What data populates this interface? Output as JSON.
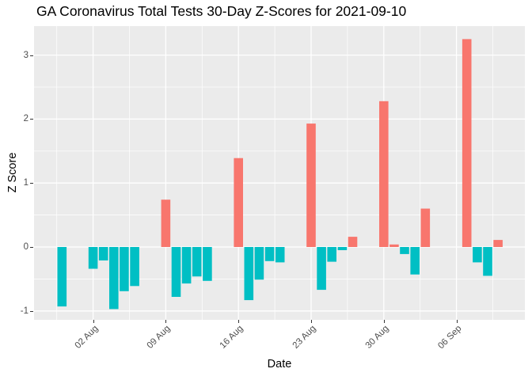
{
  "chart_data": {
    "type": "bar",
    "title": "GA Coronavirus Total Tests 30-Day Z-Scores for 2021-09-10",
    "xlabel": "Date",
    "ylabel": "Z Score",
    "legend": "none",
    "grid": true,
    "x_tick_labels": [
      "02 Aug",
      "09 Aug",
      "16 Aug",
      "23 Aug",
      "30 Aug",
      "06 Sep"
    ],
    "x_tick_dates": [
      "2021-08-02",
      "2021-08-09",
      "2021-08-16",
      "2021-08-23",
      "2021-08-30",
      "2021-09-06"
    ],
    "y_ticks": [
      -1,
      0,
      1,
      2,
      3
    ],
    "y_minor_ticks": [
      -0.5,
      0.5,
      1.5,
      2.5
    ],
    "ylim": [
      -1.17,
      3.46
    ],
    "bars": [
      {
        "date": "2021-07-30",
        "value": -0.93
      },
      {
        "date": "2021-08-02",
        "value": -0.34
      },
      {
        "date": "2021-08-03",
        "value": -0.21
      },
      {
        "date": "2021-08-04",
        "value": -0.97
      },
      {
        "date": "2021-08-05",
        "value": -0.69
      },
      {
        "date": "2021-08-06",
        "value": -0.61
      },
      {
        "date": "2021-08-09",
        "value": 0.74
      },
      {
        "date": "2021-08-10",
        "value": -0.78
      },
      {
        "date": "2021-08-11",
        "value": -0.57
      },
      {
        "date": "2021-08-12",
        "value": -0.46
      },
      {
        "date": "2021-08-13",
        "value": -0.53
      },
      {
        "date": "2021-08-16",
        "value": 1.39
      },
      {
        "date": "2021-08-17",
        "value": -0.83
      },
      {
        "date": "2021-08-18",
        "value": -0.51
      },
      {
        "date": "2021-08-19",
        "value": -0.22
      },
      {
        "date": "2021-08-20",
        "value": -0.24
      },
      {
        "date": "2021-08-23",
        "value": 1.93
      },
      {
        "date": "2021-08-24",
        "value": -0.67
      },
      {
        "date": "2021-08-25",
        "value": -0.23
      },
      {
        "date": "2021-08-26",
        "value": -0.05
      },
      {
        "date": "2021-08-27",
        "value": 0.16
      },
      {
        "date": "2021-08-30",
        "value": 2.28
      },
      {
        "date": "2021-08-31",
        "value": 0.04
      },
      {
        "date": "2021-09-01",
        "value": -0.11
      },
      {
        "date": "2021-09-02",
        "value": -0.43
      },
      {
        "date": "2021-09-03",
        "value": 0.6
      },
      {
        "date": "2021-09-07",
        "value": 3.25
      },
      {
        "date": "2021-09-08",
        "value": -0.24
      },
      {
        "date": "2021-09-09",
        "value": -0.45
      },
      {
        "date": "2021-09-10",
        "value": 0.11
      }
    ],
    "colors": {
      "positive_bar": "#F8766D",
      "negative_bar": "#00BFC4",
      "panel_background": "#EBEBEB",
      "grid": "#FFFFFF",
      "axis_text": "#4D4D4D",
      "tick_marks": "#333333",
      "title_text": "#000000",
      "figure_background": "#FFFFFF"
    }
  }
}
